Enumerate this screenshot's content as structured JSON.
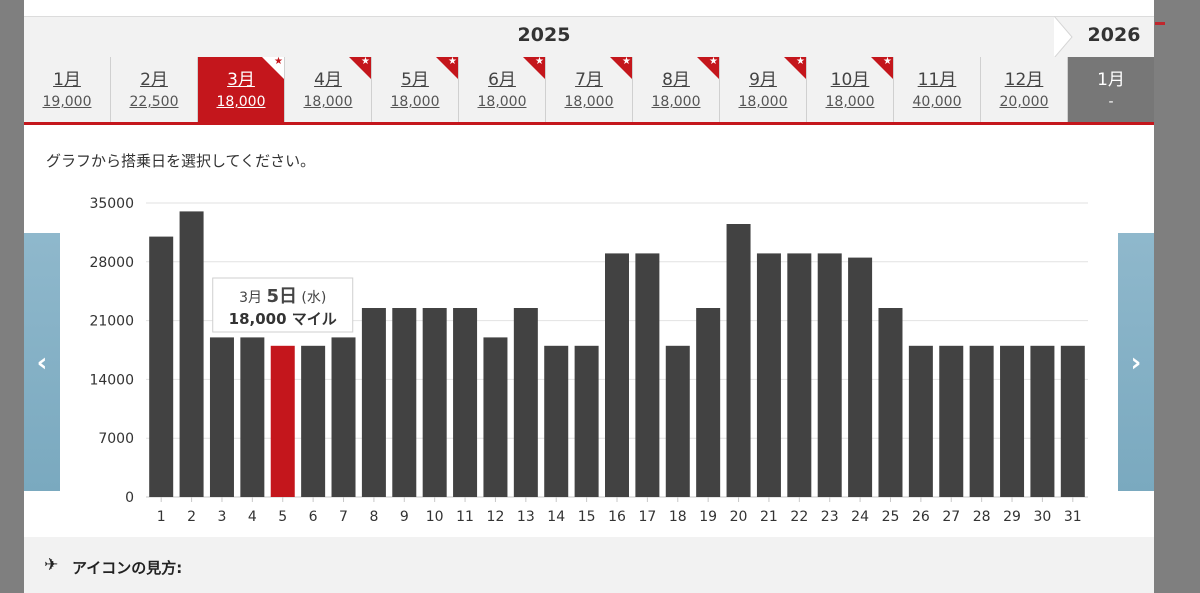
{
  "years": {
    "current": "2025",
    "next": "2026"
  },
  "months": [
    {
      "label": "1月",
      "miles": "19,000",
      "flag": false
    },
    {
      "label": "2月",
      "miles": "22,500",
      "flag": false
    },
    {
      "label": "3月",
      "miles": "18,000",
      "flag": true,
      "active": true
    },
    {
      "label": "4月",
      "miles": "18,000",
      "flag": true
    },
    {
      "label": "5月",
      "miles": "18,000",
      "flag": true
    },
    {
      "label": "6月",
      "miles": "18,000",
      "flag": true
    },
    {
      "label": "7月",
      "miles": "18,000",
      "flag": true
    },
    {
      "label": "8月",
      "miles": "18,000",
      "flag": true
    },
    {
      "label": "9月",
      "miles": "18,000",
      "flag": true
    },
    {
      "label": "10月",
      "miles": "18,000",
      "flag": true
    },
    {
      "label": "11月",
      "miles": "40,000",
      "flag": false
    },
    {
      "label": "12月",
      "miles": "20,000",
      "flag": false
    },
    {
      "label": "1月",
      "miles": "-",
      "flag": false,
      "next_year": true
    }
  ],
  "instruction": "グラフから搭乗日を選択してください。",
  "tooltip": {
    "month": "3月",
    "day": "5日",
    "weekday": "(水)",
    "miles": "18,000 マイル"
  },
  "legend": {
    "title": "アイコンの見方:"
  },
  "colors": {
    "bar": "#424242",
    "selected_bar": "#c4161c",
    "accent": "#c4161c",
    "arrow": "#86b2c6"
  },
  "chart_data": {
    "type": "bar",
    "categories": [
      "1",
      "2",
      "3",
      "4",
      "5",
      "6",
      "7",
      "8",
      "9",
      "10",
      "11",
      "12",
      "13",
      "14",
      "15",
      "16",
      "17",
      "18",
      "19",
      "20",
      "21",
      "22",
      "23",
      "24",
      "25",
      "26",
      "27",
      "28",
      "29",
      "30",
      "31"
    ],
    "values": [
      31000,
      34000,
      19000,
      19000,
      18000,
      18000,
      19000,
      22500,
      22500,
      22500,
      22500,
      19000,
      22500,
      18000,
      18000,
      29000,
      29000,
      18000,
      22500,
      32500,
      29000,
      29000,
      29000,
      28500,
      22500,
      18000,
      18000,
      18000,
      18000,
      18000,
      18000
    ],
    "selected_index": 4,
    "yticks": [
      0,
      7000,
      14000,
      21000,
      28000,
      35000
    ],
    "ylim": [
      0,
      35000
    ],
    "grid": true
  }
}
